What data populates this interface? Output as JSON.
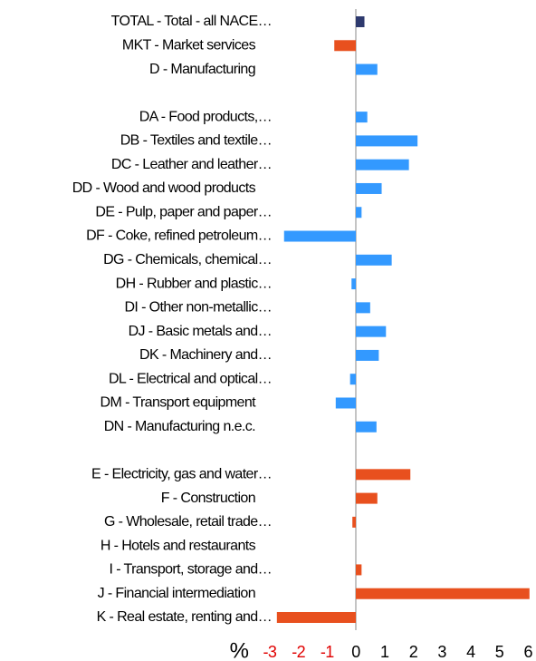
{
  "chart_data": {
    "type": "hbar",
    "xlabel": "%",
    "categories": [
      "TOTAL - Total - all NACE…",
      "MKT - Market services",
      "D - Manufacturing",
      null,
      "DA - Food products,…",
      "DB - Textiles and textile…",
      "DC - Leather and leather…",
      "DD - Wood and wood products",
      "DE - Pulp, paper and paper…",
      "DF - Coke, refined petroleum…",
      "DG - Chemicals, chemical…",
      "DH - Rubber and plastic…",
      "DI - Other non-metallic…",
      "DJ - Basic metals and…",
      "DK - Machinery and…",
      "DL - Electrical and optical…",
      "DM - Transport equipment",
      "DN - Manufacturing n.e.c.",
      null,
      "E - Electricity, gas and water…",
      "F - Construction",
      "G - Wholesale, retail trade…",
      "H - Hotels and restaurants",
      "I - Transport, storage and…",
      "J - Financial intermediation",
      "K - Real estate, renting and…"
    ],
    "values": [
      0.3,
      -0.75,
      0.75,
      null,
      0.4,
      2.15,
      1.85,
      0.9,
      0.2,
      -2.5,
      1.25,
      -0.15,
      0.5,
      1.05,
      0.8,
      -0.2,
      -0.7,
      0.72,
      null,
      1.9,
      0.75,
      -0.12,
      0,
      0.2,
      6.05,
      -2.75
    ],
    "colors": [
      "#2e3a6e",
      "#e8501e",
      "#3399ff",
      null,
      "#3399ff",
      "#3399ff",
      "#3399ff",
      "#3399ff",
      "#3399ff",
      "#3399ff",
      "#3399ff",
      "#3399ff",
      "#3399ff",
      "#3399ff",
      "#3399ff",
      "#3399ff",
      "#3399ff",
      "#3399ff",
      null,
      "#e8501e",
      "#e8501e",
      "#e8501e",
      "#e8501e",
      "#e8501e",
      "#e8501e",
      "#e8501e"
    ],
    "xlim": [
      -3.3,
      6.2
    ],
    "xticks": [
      -3,
      -2,
      -1,
      0,
      1,
      2,
      3,
      4,
      5,
      6
    ],
    "negative_tick_color": "#e00000"
  }
}
